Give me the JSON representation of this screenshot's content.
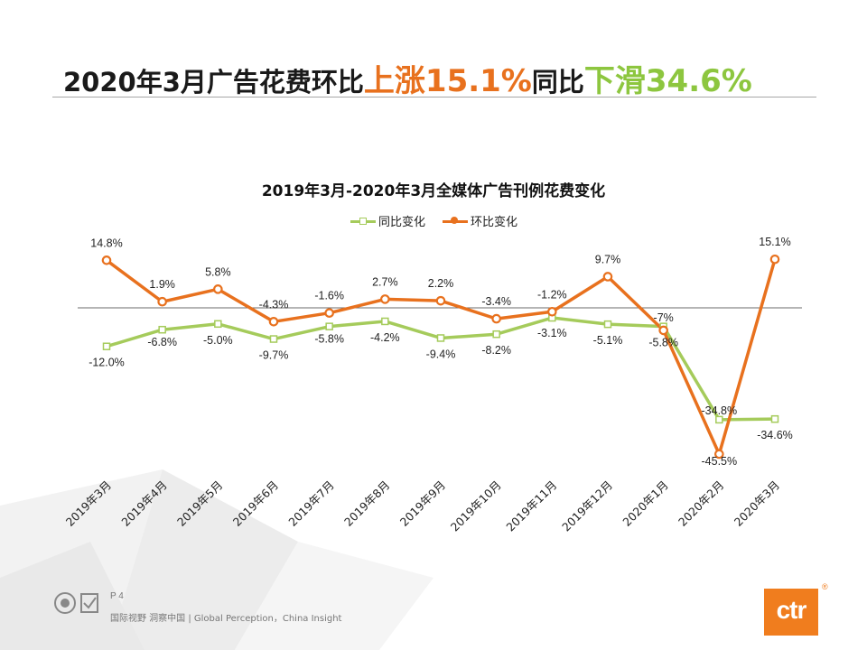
{
  "header": {
    "title_part1": "2020年3月广告花费环比",
    "title_up_word": "上涨",
    "title_up_value": "15.1%",
    "title_part2": "同比",
    "title_down_word": "下滑",
    "title_down_value": "34.6%"
  },
  "colors": {
    "yoy": "#a5cb5b",
    "mom": "#e8711e",
    "up_text": "#e8711e",
    "down_text": "#8dc63f",
    "brand": "#f07d1e"
  },
  "chart_data": {
    "type": "line",
    "title": "2019年3月-2020年3月全媒体广告刊例花费变化",
    "categories": [
      "2019年3月",
      "2019年4月",
      "2019年5月",
      "2019年6月",
      "2019年7月",
      "2019年8月",
      "2019年9月",
      "2019年10月",
      "2019年11月",
      "2019年12月",
      "2020年1月",
      "2020年2月",
      "2020年3月"
    ],
    "series": [
      {
        "name": "同比变化",
        "values": [
          -12.0,
          -6.8,
          -5.0,
          -9.7,
          -5.8,
          -4.2,
          -9.4,
          -8.2,
          -3.1,
          -5.1,
          -5.8,
          -34.8,
          -34.6
        ],
        "labels": [
          "-12.0%",
          "-6.8%",
          "-5.0%",
          "-9.7%",
          "-5.8%",
          "-4.2%",
          "-9.4%",
          "-8.2%",
          "-3.1%",
          "-5.1%",
          "-5.8%",
          "-34.8%",
          "-34.6%"
        ]
      },
      {
        "name": "环比变化",
        "values": [
          14.8,
          1.9,
          5.8,
          -4.3,
          -1.6,
          2.7,
          2.2,
          -3.4,
          -1.2,
          9.7,
          -7,
          -45.5,
          15.1
        ],
        "labels": [
          "14.8%",
          "1.9%",
          "5.8%",
          "-4.3%",
          "-1.6%",
          "2.7%",
          "2.2%",
          "-3.4%",
          "-1.2%",
          "9.7%",
          "-7%",
          "-45.5%",
          "15.1%"
        ]
      }
    ],
    "ylim": [
      -47,
      20
    ],
    "xlabel": "",
    "ylabel": "",
    "legend_position": "top-center"
  },
  "footer": {
    "page": "P 4",
    "tagline": "国际视野 洞察中国 | Global Perception，China Insight",
    "logo_text": "ctr",
    "logo_mark": "®"
  }
}
